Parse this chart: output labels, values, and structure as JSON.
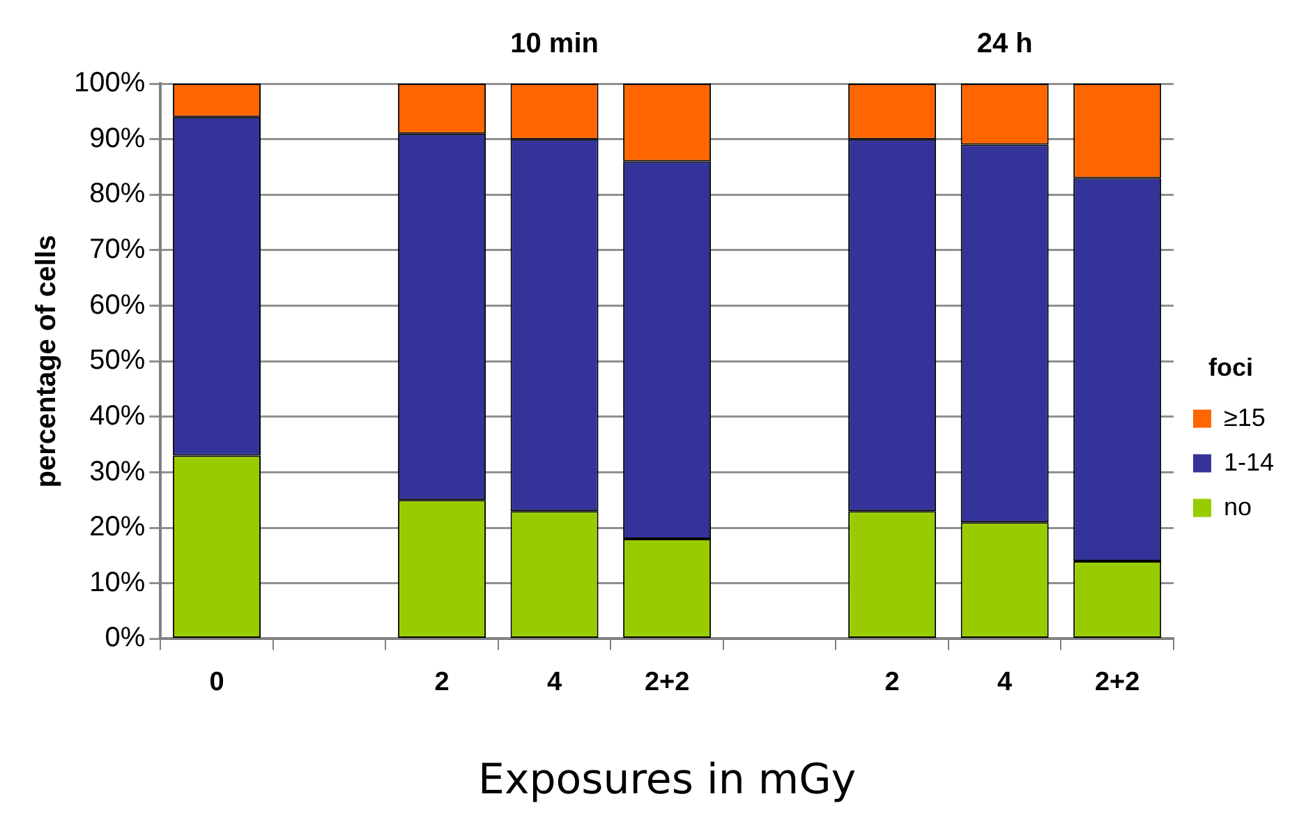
{
  "chart_data": {
    "type": "bar",
    "stacked": true,
    "xlabel": "Exposures in mGy",
    "ylabel": "percentage of cells",
    "legend_title": "foci",
    "legend": "right",
    "grid": "y",
    "categories": [
      "0",
      null,
      "2",
      "4",
      "2+2",
      null,
      "2",
      "4",
      "2+2"
    ],
    "series": [
      {
        "name": "no",
        "color": "#99cc00",
        "values": [
          33,
          null,
          25,
          23,
          18,
          null,
          23,
          21,
          14
        ]
      },
      {
        "name": "1-14",
        "color": "#333399",
        "values": [
          61,
          null,
          66,
          67,
          68,
          null,
          67,
          68,
          69
        ]
      },
      {
        "name": "≥15",
        "color": "#ff6600",
        "values": [
          6,
          null,
          9,
          10,
          14,
          null,
          10,
          11,
          17
        ]
      }
    ],
    "ylim": [
      0,
      100
    ],
    "yticks": [
      {
        "value": 0,
        "label": "0%"
      },
      {
        "value": 10,
        "label": "10%"
      },
      {
        "value": 20,
        "label": "20%"
      },
      {
        "value": 30,
        "label": "30%"
      },
      {
        "value": 40,
        "label": "40%"
      },
      {
        "value": 50,
        "label": "50%"
      },
      {
        "value": 60,
        "label": "60%"
      },
      {
        "value": 70,
        "label": "70%"
      },
      {
        "value": 80,
        "label": "80%"
      },
      {
        "value": 90,
        "label": "90%"
      },
      {
        "value": 100,
        "label": "100%"
      }
    ],
    "annotations": [
      "10 min",
      "24 h"
    ]
  }
}
